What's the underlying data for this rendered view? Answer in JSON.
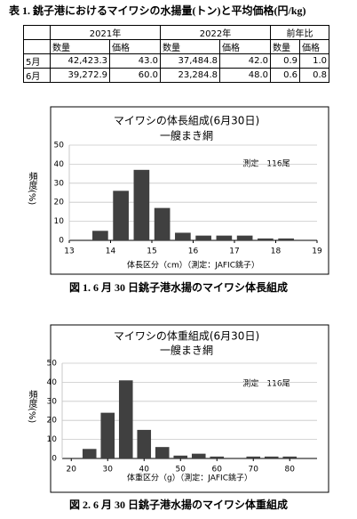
{
  "table": {
    "title": "表 1. 銚子港におけるマイワシの水揚量(トン)と平均価格(円/kg)",
    "groups": [
      "2021年",
      "2022年",
      "前年比"
    ],
    "subheaders": [
      "数量",
      "価格",
      "数量",
      "価格",
      "数量",
      "価格"
    ],
    "rows": [
      [
        "5月",
        "42,423.3",
        "43.0",
        "37,484.8",
        "42.0",
        "0.9",
        "1.0"
      ],
      [
        "6月",
        "39,272.9",
        "60.0",
        "23,284.8",
        "48.0",
        "0.6",
        "0.8"
      ]
    ]
  },
  "chart_data": [
    {
      "type": "histogram",
      "title": "マイワシの体長組成(6月30日)",
      "subtitle": "一艘まき網",
      "annotation": "測定　116尾",
      "ylabel": "頻度(%)",
      "xlabel": "体長区分（cm）（測定：JAFIC銚子）",
      "caption": "図 1. 6 月 30 日銚子港水揚のマイワシ体長組成",
      "bins": [
        13.5,
        14,
        14.5,
        15,
        15.5,
        16,
        16.5,
        17,
        17.5,
        18,
        18.5
      ],
      "values": [
        5,
        26,
        37,
        17,
        4,
        2.5,
        2.5,
        2.5,
        1,
        1
      ],
      "color": "#404040",
      "xlim": [
        13,
        19
      ],
      "xticks": [
        13,
        14,
        15,
        16,
        17,
        18,
        19
      ],
      "ylim": [
        0,
        50
      ],
      "yticks": [
        0,
        10,
        20,
        30,
        40,
        50
      ],
      "grid": true
    },
    {
      "type": "histogram",
      "title": "マイワシの体重組成(6月30日)",
      "subtitle": "一艘まき網",
      "annotation": "測定　116尾",
      "ylabel": "頻度(%)",
      "xlabel": "体重区分（g）（測定：JAFIC銚子）",
      "caption": "図 2. 6 月 30 日銚子港水揚のマイワシ体重組成",
      "bins": [
        22.5,
        27.5,
        32.5,
        37.5,
        42.5,
        47.5,
        52.5,
        57.5,
        62.5,
        67.5,
        72.5,
        77.5,
        82.5
      ],
      "values": [
        5,
        24,
        41,
        15,
        6,
        1.5,
        2.5,
        1,
        0,
        1,
        1,
        1
      ],
      "color": "#404040",
      "xlim": [
        17.5,
        87.5
      ],
      "xticks": [
        20,
        30,
        40,
        50,
        60,
        70,
        80
      ],
      "ylim": [
        0,
        50
      ],
      "yticks": [
        0,
        10,
        20,
        30,
        40,
        50
      ],
      "grid": true
    }
  ]
}
